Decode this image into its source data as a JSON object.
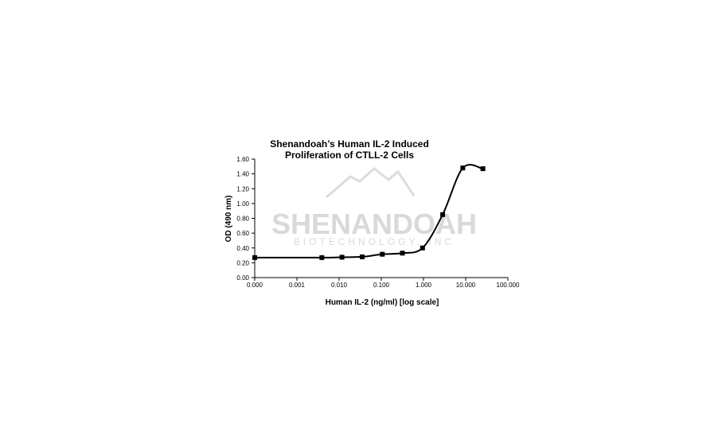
{
  "chart_data": {
    "type": "line",
    "title_lines": [
      "Shenandoah’s Human IL-2 Induced",
      "Proliferation of CTLL-2 Cells"
    ],
    "xlabel": "Human IL-2 (ng/ml) [log scale]",
    "ylabel": "OD (490 nm)",
    "x_scale": "log",
    "x_tick_labels": [
      "0.000",
      "0.001",
      "0.010",
      "0.100",
      "1.000",
      "10.000",
      "100.000"
    ],
    "x_tick_values": [
      0.0001,
      0.001,
      0.01,
      0.1,
      1,
      10,
      100
    ],
    "y_tick_labels": [
      "0.00",
      "0.20",
      "0.40",
      "0.60",
      "0.80",
      "1.00",
      "1.20",
      "1.40",
      "1.60"
    ],
    "ylim": [
      0,
      1.6
    ],
    "grid": false,
    "legend": "none",
    "line_color": "#000000",
    "marker": "square",
    "series": [
      {
        "x": [
          0.0001,
          0.0039,
          0.0117,
          0.0352,
          0.1055,
          0.3164,
          0.9492,
          2.848,
          8.54,
          25.6
        ],
        "y": [
          0.27,
          0.27,
          0.275,
          0.28,
          0.315,
          0.33,
          0.4,
          0.85,
          1.48,
          1.47
        ]
      }
    ],
    "watermark": {
      "name": "SHENANDOAH",
      "sub": "BIOTECHNOLOGY, INC"
    }
  }
}
